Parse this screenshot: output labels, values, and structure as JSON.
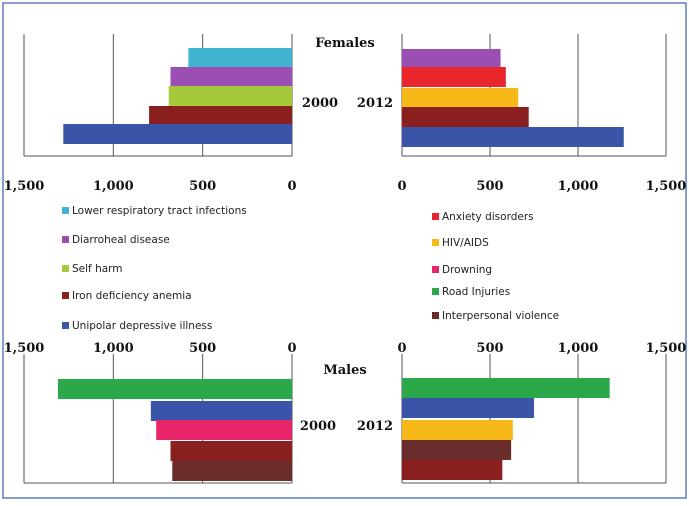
{
  "chart_data": [
    {
      "type": "bar",
      "orientation": "horizontal",
      "panel": "females-2000",
      "title": "Females",
      "year_label": "2000",
      "xlim": [
        0,
        1500
      ],
      "xticks": [
        "1,500",
        "1,000",
        "500",
        "0"
      ],
      "direction": "reversed",
      "grid": true,
      "categories": [
        "Lower respiratory tract infections",
        "Diarroheal disease",
        "Self harm",
        "Iron deficiency anemia",
        "Unipolar depressive illness"
      ],
      "values": [
        580,
        680,
        690,
        800,
        1280
      ],
      "colors": [
        "#3fb3cf",
        "#9b4fb3",
        "#a6c93a",
        "#8a1f1f",
        "#3a55a8"
      ]
    },
    {
      "type": "bar",
      "orientation": "horizontal",
      "panel": "females-2012",
      "year_label": "2012",
      "xlim": [
        0,
        1500
      ],
      "xticks": [
        "0",
        "500",
        "1,000",
        "1,500"
      ],
      "grid": true,
      "categories": [
        "Diarroheal disease",
        "Anxiety disorders",
        "HIV/AIDS",
        "Iron deficiency anemia",
        "Unipolar depressive illness"
      ],
      "values": [
        560,
        590,
        660,
        720,
        1260
      ],
      "colors": [
        "#9b4fb3",
        "#e8262b",
        "#f7b81a",
        "#8a1f1f",
        "#3a55a8"
      ]
    },
    {
      "type": "bar",
      "orientation": "horizontal",
      "panel": "males-2000",
      "title": "Males",
      "year_label": "2000",
      "xlim": [
        0,
        1500
      ],
      "xticks": [
        "1,500",
        "1,000",
        "500",
        "0"
      ],
      "direction": "reversed",
      "grid": true,
      "categories": [
        "Road Injuries",
        "Unipolar depressive illness",
        "Drowning",
        "Iron deficiency anemia",
        "Interpersonal violence"
      ],
      "values": [
        1310,
        790,
        760,
        680,
        670
      ],
      "colors": [
        "#2ba84a",
        "#3a55a8",
        "#e8246a",
        "#8a1f1f",
        "#6b2c2c"
      ]
    },
    {
      "type": "bar",
      "orientation": "horizontal",
      "panel": "males-2012",
      "year_label": "2012",
      "xlim": [
        0,
        1500
      ],
      "xticks": [
        "0",
        "500",
        "1,000",
        "1,500"
      ],
      "grid": true,
      "categories": [
        "Road Injuries",
        "Unipolar depressive illness",
        "HIV/AIDS",
        "Interpersonal violence",
        "Iron deficiency anemia"
      ],
      "values": [
        1180,
        750,
        630,
        620,
        570
      ],
      "colors": [
        "#2ba84a",
        "#3a55a8",
        "#f7b81a",
        "#6b2c2c",
        "#8a1f1f"
      ]
    }
  ],
  "legend_left": [
    {
      "label": "Lower respiratory tract infections",
      "color": "#3fb3cf"
    },
    {
      "label": "Diarroheal  disease",
      "color": "#9b4fb3"
    },
    {
      "label": "Self harm",
      "color": "#a6c93a"
    },
    {
      "label": "Iron deficiency anemia",
      "color": "#8a1f1f"
    },
    {
      "label": "Unipolar depressive illness",
      "color": "#3a55a8"
    }
  ],
  "legend_right": [
    {
      "label": "Anxiety disorders",
      "color": "#e8262b"
    },
    {
      "label": "HIV/AIDS",
      "color": "#f7b81a"
    },
    {
      "label": "Drowning",
      "color": "#e8246a"
    },
    {
      "label": "Road Injuries",
      "color": "#2ba84a"
    },
    {
      "label": "Interpersonal violence",
      "color": "#6b2c2c"
    }
  ],
  "theme": {
    "frame_border": "#5b7fc4",
    "grid": "#555555"
  }
}
